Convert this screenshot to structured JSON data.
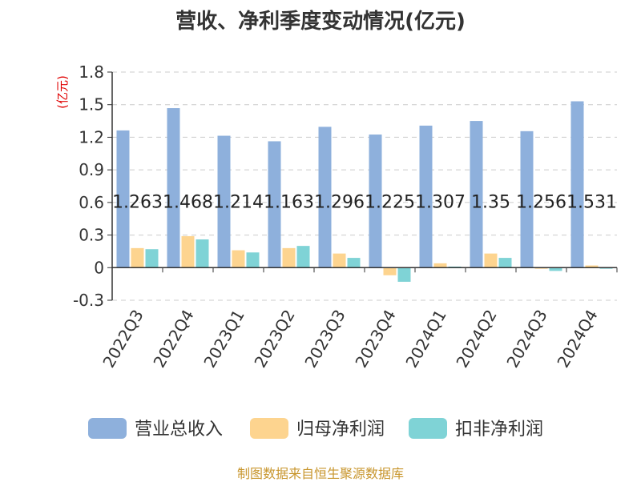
{
  "title": "营收、净利季度变动情况(亿元)",
  "footer": "制图数据来自恒生聚源数据库",
  "colors": {
    "revenue": "#8eb0dc",
    "net_profit": "#fdd48f",
    "deducted_profit": "#7fd3d6",
    "axis": "#333333",
    "grid": "#cccccc",
    "unit": "#e00000"
  },
  "chart_data": {
    "type": "bar",
    "unit_label": "(亿元)",
    "categories": [
      "2022Q3",
      "2022Q4",
      "2023Q1",
      "2023Q2",
      "2023Q3",
      "2023Q4",
      "2024Q1",
      "2024Q2",
      "2024Q3",
      "2024Q4"
    ],
    "ylim": [
      -0.3,
      1.8
    ],
    "yticks": [
      "-0.3",
      "0",
      "0.3",
      "0.6",
      "0.9",
      "1.2",
      "1.5",
      "1.8"
    ],
    "grid": true,
    "legend_position": "bottom",
    "series": [
      {
        "name": "营业总收入",
        "values": [
          1.263,
          1.468,
          1.214,
          1.163,
          1.296,
          1.225,
          1.307,
          1.35,
          1.256,
          1.531
        ],
        "labels": [
          "1.263",
          "1.468",
          "1.214",
          "1.163",
          "1.296",
          "1.225",
          "1.307",
          "1.35",
          "1.256",
          "1.531"
        ]
      },
      {
        "name": "归母净利润",
        "values": [
          0.18,
          0.29,
          0.16,
          0.18,
          0.13,
          -0.07,
          0.04,
          0.13,
          -0.01,
          0.02
        ]
      },
      {
        "name": "扣非净利润",
        "values": [
          0.17,
          0.26,
          0.14,
          0.2,
          0.09,
          -0.13,
          0.01,
          0.09,
          -0.03,
          -0.01
        ]
      }
    ]
  }
}
